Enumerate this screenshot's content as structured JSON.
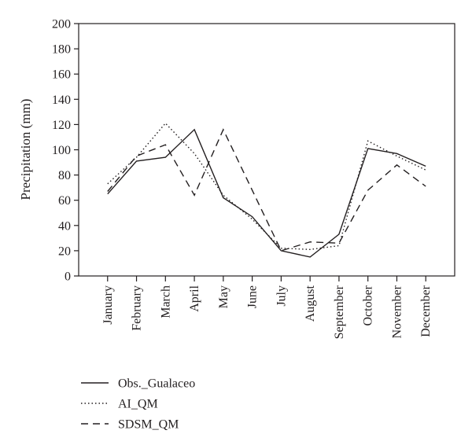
{
  "chart_data": {
    "type": "line",
    "title": "",
    "xlabel": "",
    "ylabel": "Precipitation (mm)",
    "ylim": [
      0,
      200
    ],
    "yticks": [
      0,
      20,
      40,
      60,
      80,
      100,
      120,
      140,
      160,
      180,
      200
    ],
    "categories": [
      "January",
      "February",
      "March",
      "April",
      "May",
      "June",
      "July",
      "August",
      "September",
      "October",
      "November",
      "December"
    ],
    "grid": false,
    "legend_position": "bottom-left",
    "series": [
      {
        "name": "Obs._Gualaceo",
        "style": "solid",
        "color": "#231f20",
        "values": [
          65,
          91,
          94,
          116,
          62,
          47,
          20,
          15,
          33,
          101,
          97,
          87
        ]
      },
      {
        "name": "AI_QM",
        "style": "dotted",
        "color": "#231f20",
        "values": [
          73,
          94,
          121,
          97,
          64,
          45,
          22,
          21,
          24,
          107,
          95,
          84
        ]
      },
      {
        "name": "SDSM_QM",
        "style": "dashed",
        "color": "#231f20",
        "values": [
          67,
          95,
          104,
          64,
          116,
          68,
          20,
          27,
          26,
          68,
          88,
          71
        ]
      }
    ]
  }
}
